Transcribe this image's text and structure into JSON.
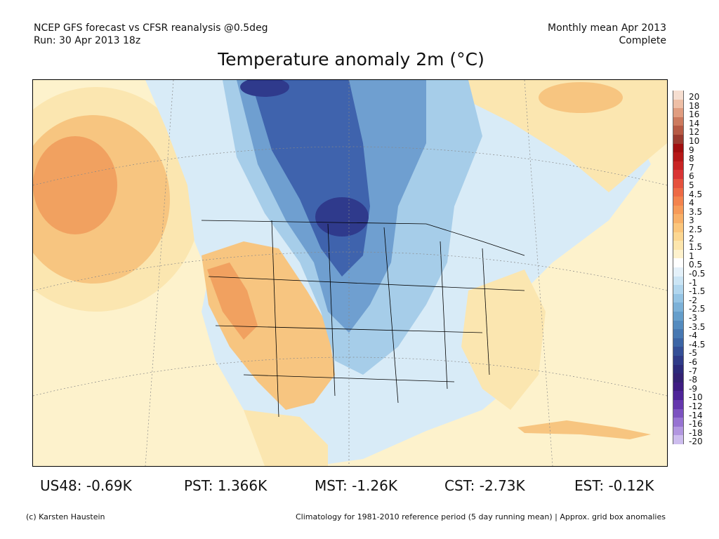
{
  "header": {
    "line1_left": "NCEP GFS forecast vs CFSR reanalysis @0.5deg",
    "line2_left": "Run: 30 Apr 2013 18z",
    "line1_right": "Monthly mean Apr 2013",
    "line2_right": "Complete"
  },
  "title": "Temperature anomaly 2m (°C)",
  "colorbar": {
    "labels": [
      "20",
      "18",
      "16",
      "14",
      "12",
      "10",
      "9",
      "8",
      "7",
      "6",
      "5",
      "4.5",
      "4",
      "3.5",
      "3",
      "2.5",
      "2",
      "1.5",
      "1",
      "0.5",
      "-0.5",
      "-1",
      "-1.5",
      "-2",
      "-2.5",
      "-3",
      "-3.5",
      "-4",
      "-4.5",
      "-5",
      "-6",
      "-7",
      "-8",
      "-9",
      "-10",
      "-12",
      "-14",
      "-16",
      "-18",
      "-20"
    ],
    "colors": [
      "#f6ded0",
      "#eebfa6",
      "#e09d80",
      "#cc7a5e",
      "#b65a44",
      "#9a3a2e",
      "#a10f0f",
      "#b51818",
      "#c82424",
      "#d93535",
      "#e5523e",
      "#ed6a45",
      "#f3834d",
      "#f69a58",
      "#f8b068",
      "#fbc67c",
      "#fcd792",
      "#fde6ad",
      "#fef2cd",
      "#ffffff",
      "#e4f1fa",
      "#cbe5f5",
      "#b1d6ee",
      "#95c4e4",
      "#7cb1d8",
      "#659ecb",
      "#548bbf",
      "#4778b2",
      "#3c65a5",
      "#344f97",
      "#2f3b88",
      "#2c2a7a",
      "#332173",
      "#3e1c82",
      "#4e2498",
      "#6537ad",
      "#7c52c0",
      "#9773d2",
      "#b297e0",
      "#cdbdee"
    ]
  },
  "map": {
    "palette": {
      "ocean": "#fdf2cc",
      "warm1": "#fbe6b0",
      "warm2": "#f7c580",
      "warm3": "#f1a160",
      "cool1": "#d8ebf7",
      "cool2": "#a6cde9",
      "cool3": "#6f9fd0",
      "cool4": "#3f63ad",
      "cool5": "#2f3a8c"
    }
  },
  "stats": [
    {
      "label": "US48: -0.69K"
    },
    {
      "label": "PST: 1.366K"
    },
    {
      "label": "MST: -1.26K"
    },
    {
      "label": "CST: -2.73K"
    },
    {
      "label": "EST: -0.12K"
    }
  ],
  "footer": {
    "left": "(c) Karsten Haustein",
    "right": "Climatology for 1981-2010 reference period (5 day running mean) | Approx. grid box anomalies"
  }
}
